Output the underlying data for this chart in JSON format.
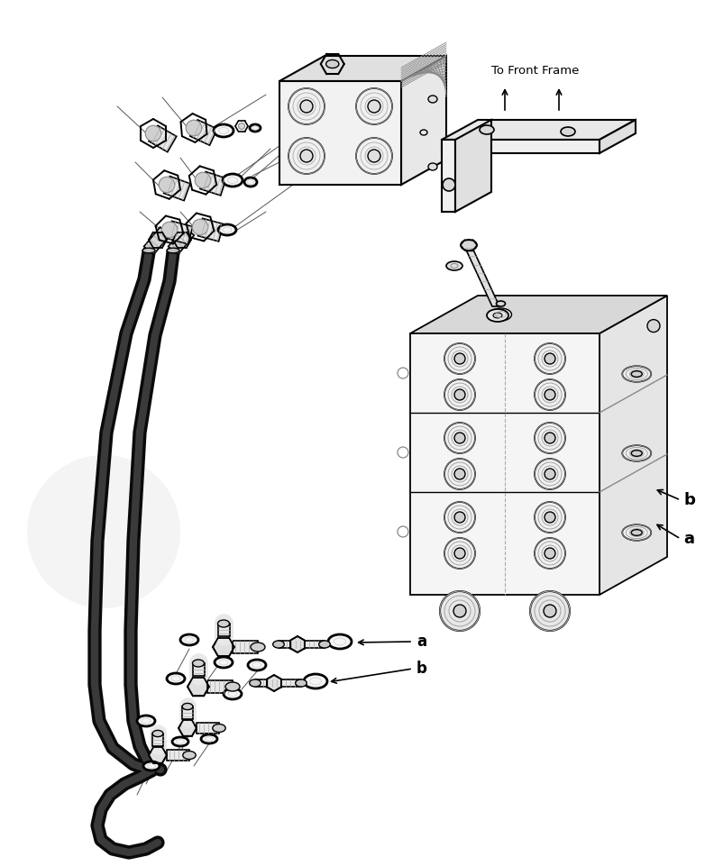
{
  "bg_color": "#ffffff",
  "line_color": "#000000",
  "figsize": [
    7.92,
    9.61
  ],
  "dpi": 100,
  "label_to_front_frame": "To Front Frame",
  "label_a": "a",
  "label_b": "b"
}
